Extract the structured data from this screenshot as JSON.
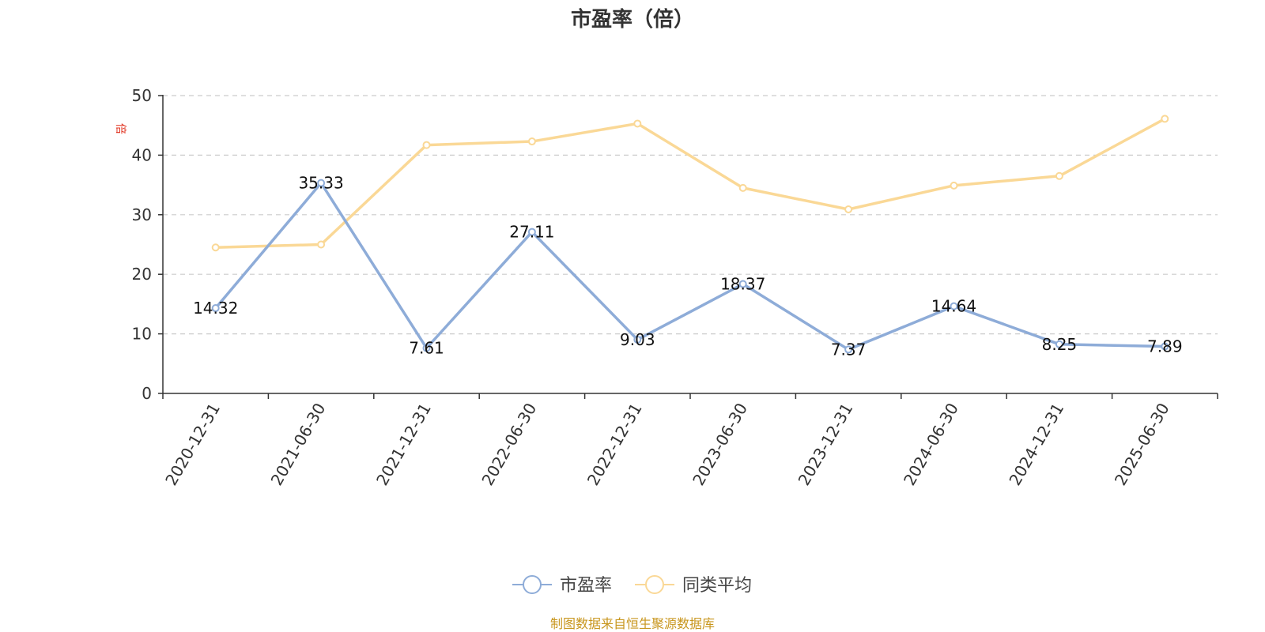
{
  "chart_data": {
    "type": "line",
    "title": "市盈率（倍）",
    "ylabel": "倍",
    "xlabel": "",
    "categories": [
      "2020-12-31",
      "2021-06-30",
      "2021-12-31",
      "2022-06-30",
      "2022-12-31",
      "2023-06-30",
      "2023-12-31",
      "2024-06-30",
      "2024-12-31",
      "2025-06-30"
    ],
    "ylim": [
      0,
      50
    ],
    "yticks": [
      0,
      10,
      20,
      30,
      40,
      50
    ],
    "grid": true,
    "legend_position": "bottom-center",
    "series": [
      {
        "name": "市盈率",
        "color": "#8eacd8",
        "values": [
          14.32,
          35.33,
          7.61,
          27.11,
          9.03,
          18.37,
          7.37,
          14.64,
          8.25,
          7.89
        ],
        "labels": [
          "14.32",
          "35.33",
          "7.61",
          "27.11",
          "9.03",
          "18.37",
          "7.37",
          "14.64",
          "8.25",
          "7.89"
        ],
        "show_labels": true
      },
      {
        "name": "同类平均",
        "color": "#fad896",
        "values": [
          24.5,
          25.0,
          41.7,
          42.3,
          45.3,
          34.5,
          30.9,
          34.9,
          36.5,
          46.1
        ],
        "show_labels": false
      }
    ]
  },
  "source_note": "制图数据来自恒生聚源数据库",
  "colors": {
    "axis": "#333333",
    "grid": "#cccccc",
    "unit_label": "#e0301e",
    "source_note": "#c8961e"
  }
}
